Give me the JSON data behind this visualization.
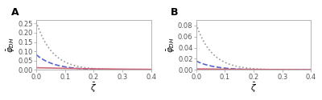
{
  "panel_A": {
    "label": "A",
    "ylim": [
      0,
      0.27
    ],
    "yticks": [
      0.0,
      0.05,
      0.1,
      0.15,
      0.2,
      0.25
    ],
    "curves": [
      {
        "type": "dotted",
        "color": "#999999",
        "scale": 0.26,
        "decay": 18.0
      },
      {
        "type": "dashed",
        "color": "#5566cc",
        "scale": 0.082,
        "decay": 16.0
      },
      {
        "type": "solid",
        "color": "#cc6677",
        "scale": 0.012,
        "decay": 3.5
      }
    ]
  },
  "panel_B": {
    "label": "B",
    "ylim": [
      0,
      0.09
    ],
    "yticks": [
      0.0,
      0.02,
      0.04,
      0.06,
      0.08
    ],
    "curves": [
      {
        "type": "dotted",
        "color": "#999999",
        "scale": 0.082,
        "decay": 18.0
      },
      {
        "type": "dashed",
        "color": "#5566cc",
        "scale": 0.016,
        "decay": 16.0
      },
      {
        "type": "solid",
        "color": "#cc6677",
        "scale": 0.0018,
        "decay": 3.5
      }
    ]
  },
  "xlim": [
    0,
    0.4
  ],
  "xticks": [
    0.0,
    0.1,
    0.2,
    0.3,
    0.4
  ],
  "xlabel": "$\\bar{\\zeta}$",
  "ylabel": "$\\bar{\\varphi}_{DH}$",
  "background_color": "#ffffff",
  "plot_bg_color": "#ffffff",
  "spine_color": "#aaaaaa",
  "tick_color": "#aaaaaa",
  "linewidth": 1.2,
  "label_fontsize": 7.5,
  "tick_fontsize": 6,
  "panel_label_fontsize": 9
}
